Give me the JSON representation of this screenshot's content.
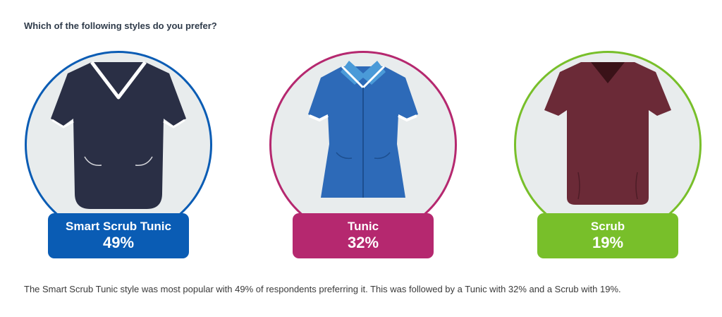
{
  "question": "Which of the following styles do you prefer?",
  "chart_data": {
    "type": "pictorial-percentage",
    "categories": [
      "Smart Scrub Tunic",
      "Tunic",
      "Scrub"
    ],
    "values": [
      49,
      32,
      19
    ],
    "value_labels": [
      "49%",
      "32%",
      "19%"
    ],
    "unit": "%",
    "series": [
      {
        "values": [
          49,
          32,
          19
        ]
      }
    ],
    "colors": [
      "#0a5cb4",
      "#b5286f",
      "#78bf2a"
    ]
  },
  "options": [
    {
      "label": "Smart Scrub Tunic",
      "percent": "49%",
      "color": "#0a5cb4",
      "garment_icon": "smart-scrub-tunic-icon",
      "garment_color": "#2a2f45"
    },
    {
      "label": "Tunic",
      "percent": "32%",
      "color": "#b5286f",
      "garment_icon": "tunic-icon",
      "garment_color": "#2d6ab8"
    },
    {
      "label": "Scrub",
      "percent": "19%",
      "color": "#78bf2a",
      "garment_icon": "scrub-icon",
      "garment_color": "#6b2a37"
    }
  ],
  "summary": "The Smart Scrub Tunic style was most popular with 49% of respondents preferring it. This was followed by a Tunic with 32% and a Scrub with 19%."
}
